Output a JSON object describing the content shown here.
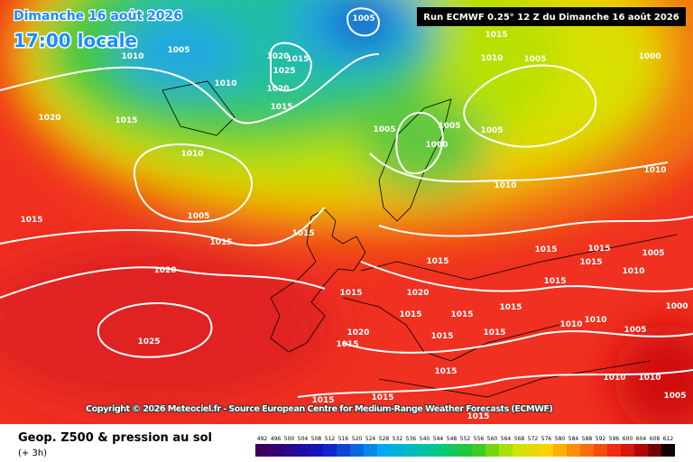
{
  "title": {
    "date": "Dimanche 16 août 2026",
    "time": "17:00 locale"
  },
  "run_info": "Run ECMWF 0.25° 12 Z du Dimanche 16 août 2026",
  "copyright": "Copyright © 2026 Meteociel.fr - Source European Centre for Medium-Range Weather Forecasts (ECMWF)",
  "legend": {
    "title": "Geop. Z500 & pression au sol",
    "subtitle": "(+ 3h)",
    "scale": [
      492,
      496,
      500,
      504,
      508,
      512,
      516,
      520,
      524,
      528,
      532,
      536,
      540,
      544,
      548,
      552,
      556,
      560,
      564,
      568,
      572,
      576,
      580,
      584,
      588,
      592,
      596,
      600,
      604,
      608,
      612
    ]
  },
  "isobar_labels": [
    "1005",
    "1005",
    "1010",
    "1010",
    "1020",
    "1015",
    "1025",
    "1020",
    "1015",
    "1015",
    "1010",
    "1005",
    "1000",
    "1020",
    "1015",
    "1010",
    "1005",
    "1005",
    "1005",
    "1000",
    "1010",
    "1010",
    "1005",
    "1015",
    "1015",
    "1015",
    "1020",
    "1015",
    "1015",
    "1015",
    "1005",
    "1015",
    "1010",
    "1015",
    "1020",
    "1015",
    "1015",
    "1015",
    "1015",
    "1000",
    "1025",
    "1020",
    "1015",
    "1015",
    "1015",
    "1010",
    "1010",
    "1005",
    "1015",
    "1010",
    "1010",
    "1015",
    "1015",
    "1005",
    "1015"
  ]
}
